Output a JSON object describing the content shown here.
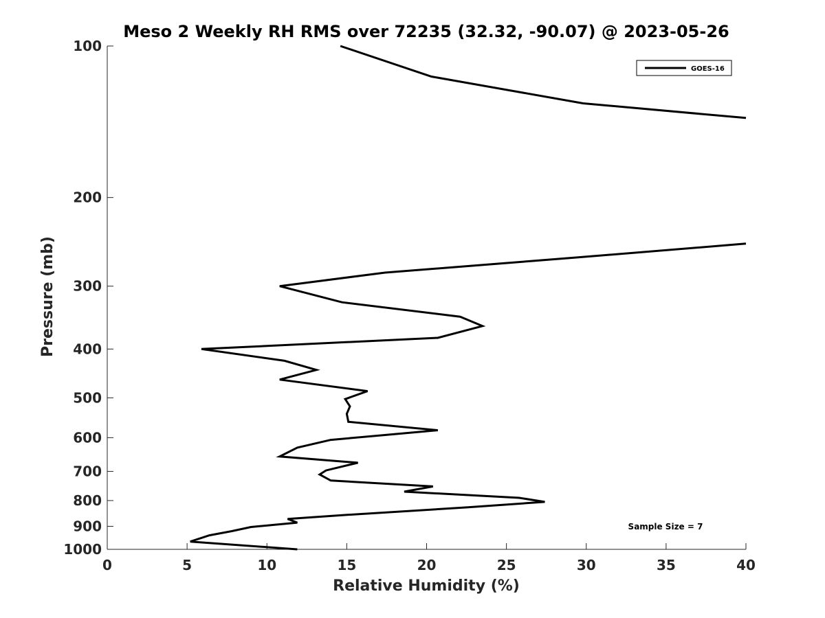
{
  "chart_data": {
    "type": "line",
    "title": "Meso 2 Weekly RH RMS over 72235 (32.32, -90.07) @ 2023-05-26",
    "xlabel": "Relative Humidity (%)",
    "ylabel": "Pressure (mb)",
    "xlim": [
      0,
      40
    ],
    "ylim": [
      1000,
      100
    ],
    "yscale": "log",
    "xticks": [
      0,
      5,
      10,
      15,
      20,
      25,
      30,
      35,
      40
    ],
    "yticks": [
      100,
      200,
      300,
      400,
      500,
      600,
      700,
      800,
      900,
      1000
    ],
    "grid": false,
    "legend_position": "top-right",
    "annotation": "Sample Size = 7",
    "series": [
      {
        "name": "GOES-16",
        "color": "#000000",
        "points": [
          [
            14.6,
            100
          ],
          [
            20.3,
            115
          ],
          [
            29.8,
            130
          ],
          [
            40.0,
            139
          ],
          null,
          [
            40.0,
            247
          ],
          [
            29.5,
            263
          ],
          [
            17.4,
            282
          ],
          [
            10.8,
            300
          ],
          [
            14.7,
            323
          ],
          [
            22.1,
            345
          ],
          [
            23.5,
            360
          ],
          [
            20.7,
            380
          ],
          [
            5.9,
            400
          ],
          [
            11.1,
            422
          ],
          [
            13.1,
            440
          ],
          [
            10.8,
            460
          ],
          [
            16.3,
            485
          ],
          [
            14.9,
            503
          ],
          [
            15.2,
            520
          ],
          [
            15.0,
            538
          ],
          [
            15.1,
            558
          ],
          [
            20.7,
            580
          ],
          [
            14.0,
            606
          ],
          [
            11.9,
            628
          ],
          [
            10.8,
            654
          ],
          [
            15.7,
            673
          ],
          [
            13.7,
            697
          ],
          [
            13.3,
            710
          ],
          [
            14.0,
            730
          ],
          [
            20.4,
            750
          ],
          [
            18.6,
            768
          ],
          [
            25.8,
            790
          ],
          [
            27.4,
            805
          ],
          [
            22.6,
            825
          ],
          [
            14.8,
            855
          ],
          [
            11.3,
            870
          ],
          [
            11.9,
            885
          ],
          [
            9.0,
            903
          ],
          [
            7.8,
            920
          ],
          [
            6.4,
            938
          ],
          [
            5.2,
            965
          ],
          [
            11.9,
            1000
          ]
        ]
      }
    ]
  }
}
